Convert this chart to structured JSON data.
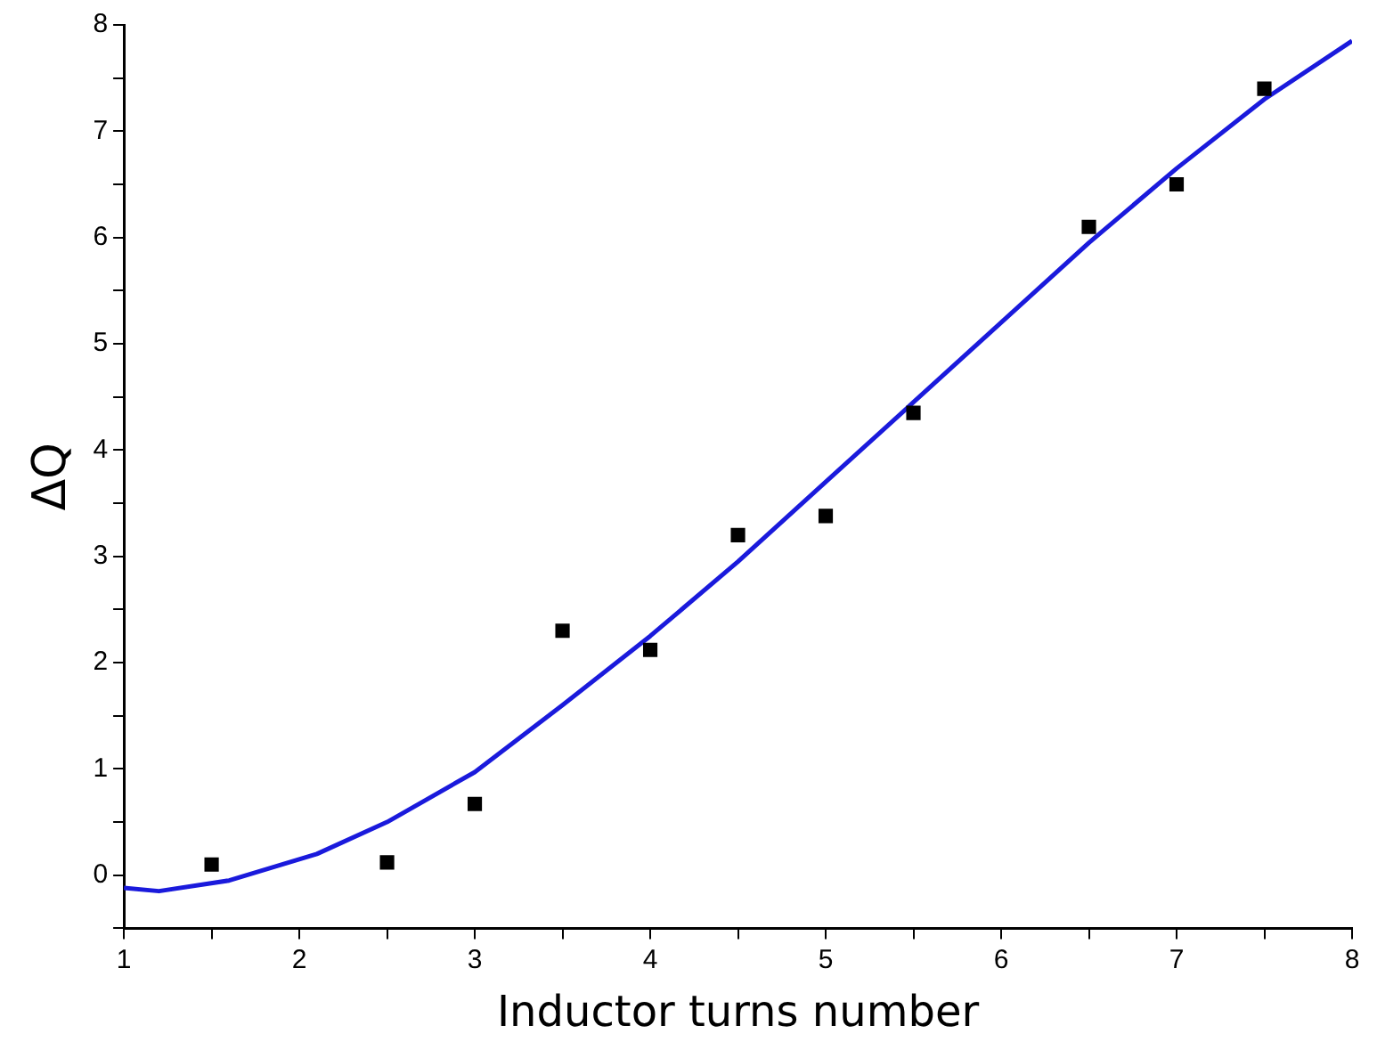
{
  "chart_data": {
    "type": "scatter",
    "xlabel": "Inductor turns number",
    "ylabel": "ΔQ",
    "xlim": [
      1,
      8
    ],
    "ylim": [
      -0.5,
      8
    ],
    "xticks": [
      1,
      {
        "value": 1.5,
        "label": null
      },
      2,
      {
        "value": 2.5,
        "label": null
      },
      3,
      {
        "value": 3.5,
        "label": null
      },
      4,
      {
        "value": 4.5,
        "label": null
      },
      5,
      {
        "value": 5.5,
        "label": null
      },
      6,
      {
        "value": 6.5,
        "label": null
      },
      7,
      {
        "value": 7.5,
        "label": null
      },
      8
    ],
    "yticks": [
      {
        "value": -0.5,
        "label": null
      },
      0,
      {
        "value": 0.5,
        "label": null
      },
      1,
      {
        "value": 1.5,
        "label": null
      },
      2,
      {
        "value": 2.5,
        "label": null
      },
      3,
      {
        "value": 3.5,
        "label": null
      },
      4,
      {
        "value": 4.5,
        "label": null
      },
      5,
      {
        "value": 5.5,
        "label": null
      },
      6,
      {
        "value": 6.5,
        "label": null
      },
      7,
      {
        "value": 7.5,
        "label": null
      },
      8
    ],
    "grid": false,
    "legend": false,
    "series": [
      {
        "color": "#000000",
        "marker": "square",
        "x": [
          1.5,
          2.5,
          3,
          3.5,
          4,
          4.5,
          5,
          5.5,
          6.5,
          7,
          7.5
        ],
        "values": [
          0.1,
          0.12,
          0.67,
          2.3,
          2.12,
          3.2,
          3.38,
          4.35,
          6.1,
          6.5,
          7.4
        ]
      },
      {
        "type": "line",
        "color": "#1a1adc",
        "marker": "none",
        "x": [
          1,
          1.2,
          1.6,
          2.1,
          2.5,
          3,
          3.5,
          4,
          4.5,
          5,
          5.5,
          6,
          6.5,
          7,
          7.5,
          8
        ],
        "values": [
          -0.12,
          -0.15,
          -0.05,
          0.2,
          0.5,
          0.97,
          1.6,
          2.25,
          2.95,
          3.7,
          4.45,
          5.2,
          5.95,
          6.65,
          7.3,
          7.85
        ]
      }
    ]
  }
}
